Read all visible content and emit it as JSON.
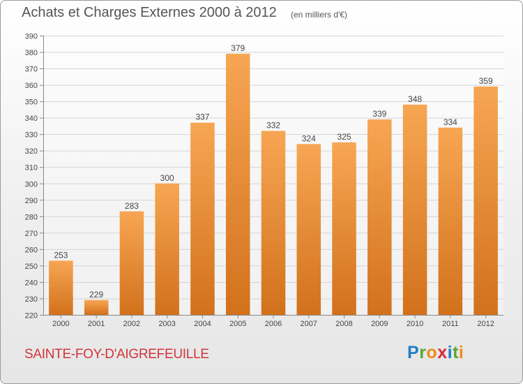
{
  "title": "Achats et Charges Externes 2000 à 2012",
  "subtitle": "(en milliers d'€)",
  "commune": "SAINTE-FOY-D'AIGREFEUILLE",
  "logo": {
    "letters": [
      "P",
      "r",
      "o",
      "x",
      "i",
      "t",
      "i"
    ]
  },
  "colors": {
    "bar_top": "#f7a653",
    "bar_bottom": "#d2711c",
    "commune_text": "#d1343b"
  },
  "chart_data": {
    "type": "bar",
    "title": "Achats et Charges Externes 2000 à 2012",
    "subtitle": "(en milliers d'€)",
    "categories": [
      "2000",
      "2001",
      "2002",
      "2003",
      "2004",
      "2005",
      "2006",
      "2007",
      "2008",
      "2009",
      "2010",
      "2011",
      "2012"
    ],
    "values": [
      253,
      229,
      283,
      300,
      337,
      379,
      332,
      324,
      325,
      339,
      348,
      334,
      359
    ],
    "ylim": [
      220,
      390
    ],
    "yticks": [
      220,
      230,
      240,
      250,
      260,
      270,
      280,
      290,
      300,
      310,
      320,
      330,
      340,
      350,
      360,
      370,
      380,
      390
    ],
    "grid": "horizontal",
    "legend": "none"
  }
}
